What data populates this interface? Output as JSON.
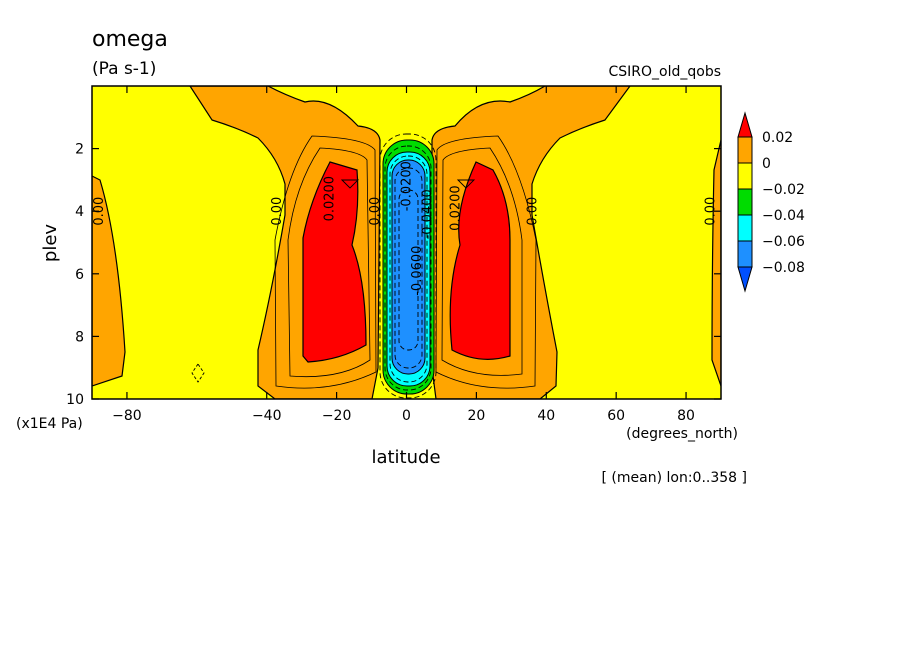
{
  "chart_data": {
    "type": "contour",
    "title": "omega",
    "units": "(Pa s-1)",
    "model": "CSIRO_old_qobs",
    "xlabel": "latitude",
    "xunits": "(degrees_north)",
    "ylabel": "plev",
    "yunits": "(x1E4 Pa)",
    "note": "[ (mean) lon:0..358 ]",
    "xlim": [
      -90,
      90
    ],
    "ylim": [
      10,
      0
    ],
    "x_ticks": [
      "−80",
      "−40",
      "−20",
      "0",
      "20",
      "40",
      "60",
      "80"
    ],
    "x_tick_values": [
      -80,
      -40,
      -20,
      0,
      20,
      40,
      60,
      80
    ],
    "y_ticks": [
      "2",
      "4",
      "6",
      "8",
      "10"
    ],
    "y_tick_values": [
      2,
      4,
      6,
      8,
      10
    ],
    "colorbar": {
      "levels": [
        0.02,
        0,
        -0.02,
        -0.04,
        -0.06,
        -0.08
      ],
      "labels": [
        "0.02",
        "0",
        "−0.02",
        "−0.04",
        "−0.06",
        "−0.08"
      ],
      "colors": [
        "#ff0000",
        "#ffa500",
        "#ffff00",
        "#00dc00",
        "#00ffff",
        "#1e90ff",
        "#0050ff"
      ]
    },
    "contour_labels": [
      {
        "text": "0.00",
        "lat": -88,
        "plev": 4.0
      },
      {
        "text": "0.00",
        "lat": -37,
        "plev": 4.0
      },
      {
        "text": "0.0200",
        "lat": -22,
        "plev": 3.6
      },
      {
        "text": "0.00",
        "lat": -9,
        "plev": 4.0
      },
      {
        "text": "-0.0200",
        "lat": 0,
        "plev": 3.2
      },
      {
        "text": "-0.0400",
        "lat": 6,
        "plev": 4.1
      },
      {
        "text": "-0.0600",
        "lat": 3,
        "plev": 5.9
      },
      {
        "text": "0.0200",
        "lat": 14,
        "plev": 3.9
      },
      {
        "text": "0.00",
        "lat": 36,
        "plev": 4.0
      },
      {
        "text": "0.00",
        "lat": 87,
        "plev": 4.0
      }
    ]
  }
}
